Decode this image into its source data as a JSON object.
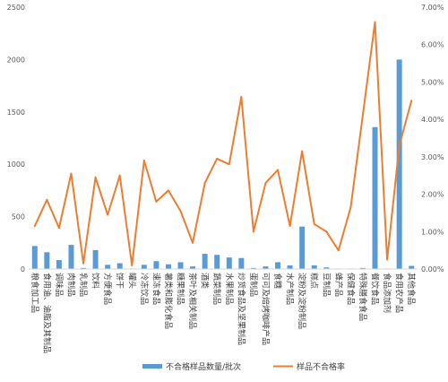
{
  "chart_data": {
    "type": "bar",
    "categories": [
      "粮食加工品",
      "食用油、油脂及其制品",
      "调味品",
      "肉制品",
      "乳制品",
      "饮料",
      "方便食品",
      "饼干",
      "罐头",
      "冷冻饮品",
      "速冻食品",
      "薯类和膨化食品",
      "糖果制品",
      "茶叶及相关制品",
      "酒类",
      "蔬菜制品",
      "水果制品",
      "炒货食品及坚果制品",
      "蛋制品",
      "可可及焙烤咖啡产品",
      "食糖",
      "水产制品",
      "淀粉及淀粉制品",
      "糕点",
      "豆制品",
      "蜂产品",
      "保健食品",
      "特殊膳食食品",
      "餐饮食品",
      "食品添加剂",
      "食用农产品",
      "其他食品"
    ],
    "series": [
      {
        "name": "不合格样品数量/批次",
        "axis": "left",
        "type": "bar",
        "color": "#5B9BD5",
        "values": [
          220,
          160,
          85,
          230,
          10,
          180,
          40,
          55,
          5,
          40,
          75,
          45,
          65,
          25,
          145,
          135,
          110,
          105,
          10,
          25,
          65,
          35,
          405,
          35,
          15,
          5,
          5,
          10,
          1355,
          5,
          2000,
          30
        ]
      },
      {
        "name": "样品不合格率",
        "axis": "right",
        "type": "line",
        "color": "#ED7D31",
        "values": [
          1.15,
          1.85,
          1.1,
          2.55,
          0.15,
          2.45,
          1.45,
          2.5,
          0.1,
          2.9,
          1.8,
          2.1,
          1.55,
          0.7,
          2.3,
          2.95,
          2.8,
          4.6,
          1.0,
          2.3,
          2.65,
          1.15,
          3.15,
          1.2,
          1.0,
          0.5,
          1.65,
          null,
          6.6,
          0.25,
          3.3,
          4.5
        ]
      }
    ],
    "y_left": {
      "min": 0,
      "max": 2500,
      "ticks": [
        "0",
        "500",
        "1000",
        "1500",
        "2000",
        "2500"
      ]
    },
    "y_right": {
      "min": 0,
      "max": 7,
      "ticks": [
        "0.00%",
        "1.00%",
        "2.00%",
        "3.00%",
        "4.00%",
        "5.00%",
        "6.00%",
        "7.00%"
      ]
    },
    "grid": false,
    "legend_position": "bottom"
  }
}
